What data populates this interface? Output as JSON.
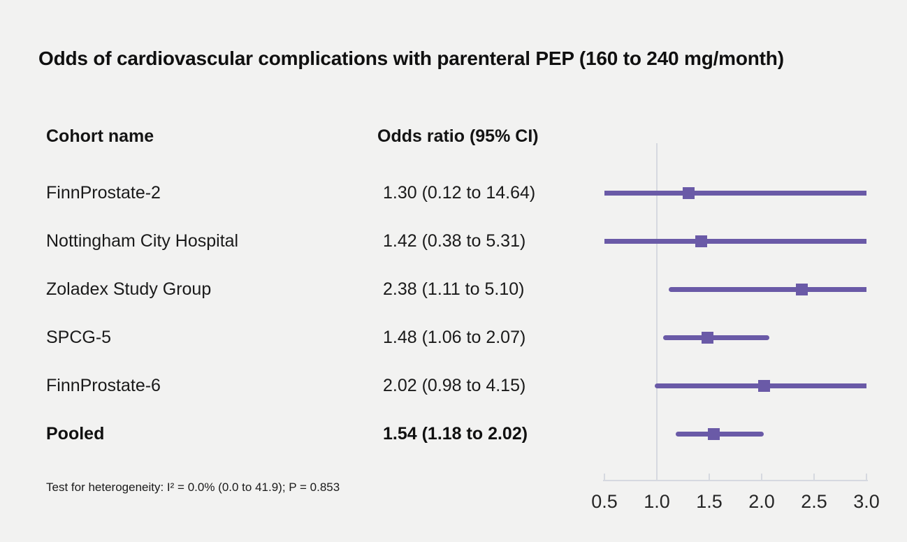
{
  "title": "Odds of cardiovascular complications with parenteral PEP (160 to 240 mg/month)",
  "columns": {
    "cohort_header": "Cohort name",
    "odds_header": "Odds ratio (95% CI)"
  },
  "footnote": "Test for heterogeneity: I² = 0.0% (0.0 to 41.9); P = 0.853",
  "colors": {
    "background": "#f2f2f1",
    "marker": "#6a5aa7",
    "axis_line": "#d6d9e0",
    "text": "#141414"
  },
  "chart_data": {
    "type": "scatter",
    "variant": "forest-plot",
    "title": "Odds of cardiovascular complications with parenteral PEP (160 to 240 mg/month)",
    "xlabel": "Odds ratio",
    "ylabel": "",
    "xlim": [
      0.5,
      3.0
    ],
    "ticks": [
      0.5,
      1.0,
      1.5,
      2.0,
      2.5,
      3.0
    ],
    "reference_line": 1.0,
    "grid": false,
    "legend": false,
    "studies": [
      {
        "label": "FinnProstate-2",
        "display": "1.30 (0.12 to 14.64)",
        "or": 1.3,
        "ci_low": 0.12,
        "ci_high": 14.64,
        "pooled": false
      },
      {
        "label": "Nottingham City Hospital",
        "display": "1.42 (0.38 to 5.31)",
        "or": 1.42,
        "ci_low": 0.38,
        "ci_high": 5.31,
        "pooled": false
      },
      {
        "label": "Zoladex Study Group",
        "display": "2.38 (1.11 to 5.10)",
        "or": 2.38,
        "ci_low": 1.11,
        "ci_high": 5.1,
        "pooled": false
      },
      {
        "label": "SPCG-5",
        "display": "1.48 (1.06 to 2.07)",
        "or": 1.48,
        "ci_low": 1.06,
        "ci_high": 2.07,
        "pooled": false
      },
      {
        "label": "FinnProstate-6",
        "display": "2.02 (0.98 to 4.15)",
        "or": 2.02,
        "ci_low": 0.98,
        "ci_high": 4.15,
        "pooled": false
      },
      {
        "label": "Pooled",
        "display": "1.54 (1.18 to 2.02)",
        "or": 1.54,
        "ci_low": 1.18,
        "ci_high": 2.02,
        "pooled": true
      }
    ]
  }
}
